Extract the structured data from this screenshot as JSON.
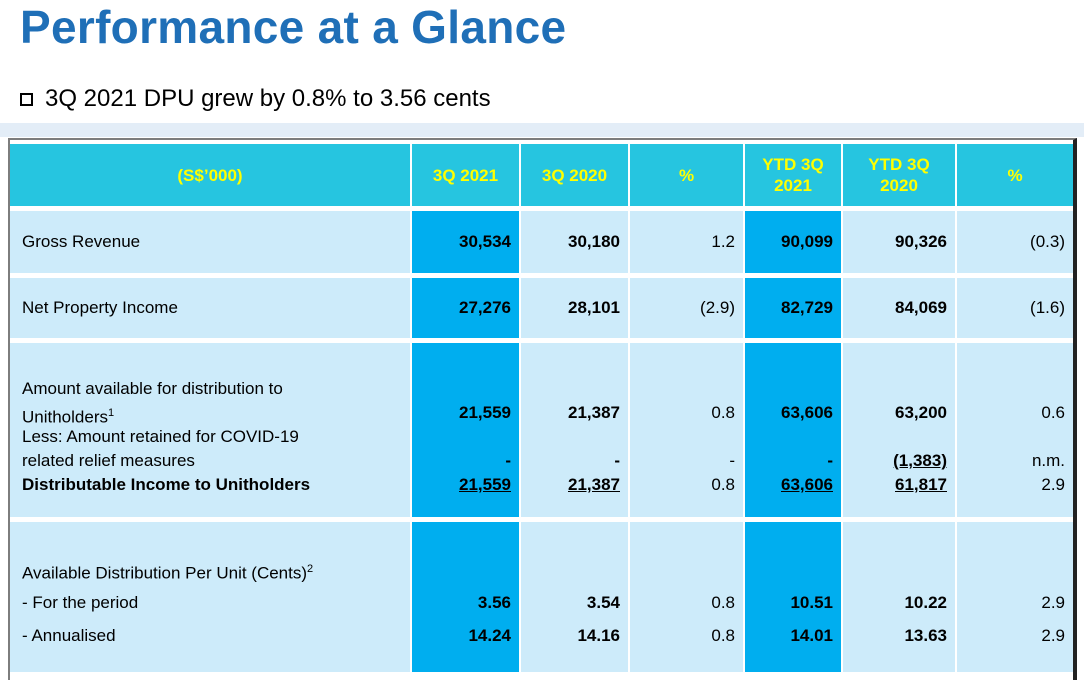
{
  "header": {
    "title": "Performance at a Glance",
    "bullet": "3Q 2021 DPU grew by 0.8% to 3.56 cents"
  },
  "table": {
    "columns": [
      "(S$’000)",
      "3Q 2021",
      "3Q 2020",
      "%",
      "YTD 3Q 2021",
      "YTD 3Q 2020",
      "%"
    ],
    "rows": {
      "gross_revenue": {
        "label": "Gross Revenue",
        "values": [
          "30,534",
          "30,180",
          "1.2",
          "90,099",
          "90,326",
          "(0.3)"
        ]
      },
      "npi": {
        "label": "Net Property Income",
        "values": [
          "27,276",
          "28,101",
          "(2.9)",
          "82,729",
          "84,069",
          "(1.6)"
        ]
      },
      "distribution": {
        "label_1": "Amount available for distribution to",
        "label_2": "Unitholders",
        "label_2_sup": "1",
        "label_3": "Less: Amount retained for COVID-19",
        "label_4": "related relief measures",
        "label_5": "Distributable Income to Unitholders",
        "amount": [
          "21,559",
          "21,387",
          "0.8",
          "63,606",
          "63,200",
          "0.6"
        ],
        "retained": [
          "-",
          "-",
          "-",
          "-",
          "(1,383)",
          "n.m."
        ],
        "distributable": [
          "21,559",
          "21,387",
          "0.8",
          "63,606",
          "61,817",
          "2.9"
        ]
      },
      "dpu": {
        "label_1": "Available Distribution Per Unit (Cents)",
        "label_1_sup": "2",
        "label_2": "- For the period",
        "label_3": "- Annualised",
        "period": [
          "3.56",
          "3.54",
          "0.8",
          "10.51",
          "10.22",
          "2.9"
        ],
        "annualised": [
          "14.24",
          "14.16",
          "0.8",
          "14.01",
          "13.63",
          "2.9"
        ]
      }
    }
  },
  "colors": {
    "title": "#1f6fb7",
    "header_bg": "#26c5e0",
    "header_text": "#ffff00",
    "row_bg": "#cdebfa",
    "highlight_col": "#00aeef"
  }
}
